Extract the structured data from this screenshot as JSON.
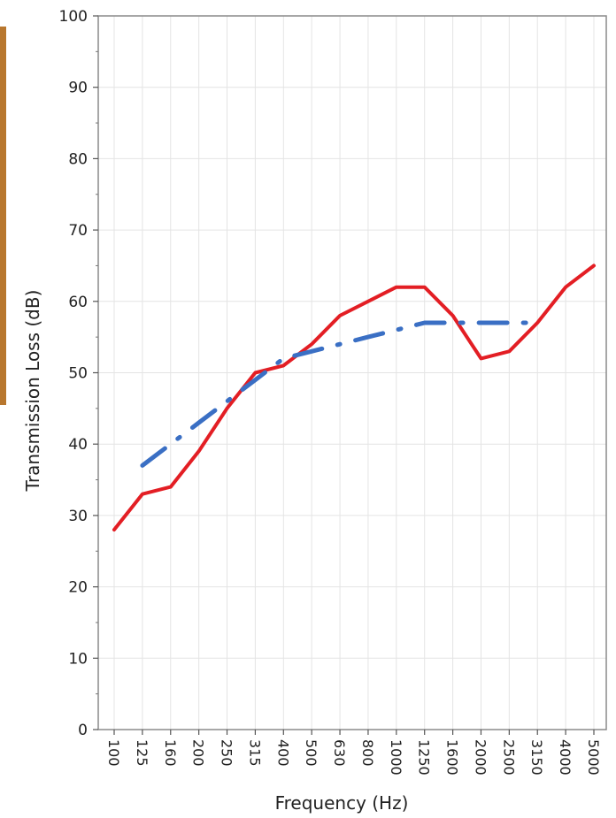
{
  "chart_data": {
    "type": "line",
    "title": "",
    "xlabel": "Frequency (Hz)",
    "ylabel": "Transmission Loss (dB)",
    "ylim": [
      0,
      100
    ],
    "yticks": [
      "0",
      "10",
      "20",
      "30",
      "40",
      "50",
      "60",
      "70",
      "80",
      "90",
      "100"
    ],
    "categories": [
      "100",
      "125",
      "160",
      "200",
      "250",
      "315",
      "400",
      "500",
      "630",
      "800",
      "1000",
      "1250",
      "1600",
      "2000",
      "2500",
      "3150",
      "4000",
      "5000"
    ],
    "grid": true,
    "legend": "none",
    "series": [
      {
        "style": "solid",
        "color": "#e31e24",
        "values": [
          28,
          33,
          34,
          39,
          45,
          50,
          51,
          54,
          58,
          60,
          62,
          62,
          58,
          52,
          53,
          57,
          62,
          65
        ]
      },
      {
        "style": "dash-dot",
        "color": "#3a6fc4",
        "values": [
          null,
          37,
          40,
          43,
          46,
          49,
          52,
          53,
          54,
          55,
          56,
          57,
          57,
          57,
          57,
          57,
          null,
          null
        ]
      }
    ]
  }
}
